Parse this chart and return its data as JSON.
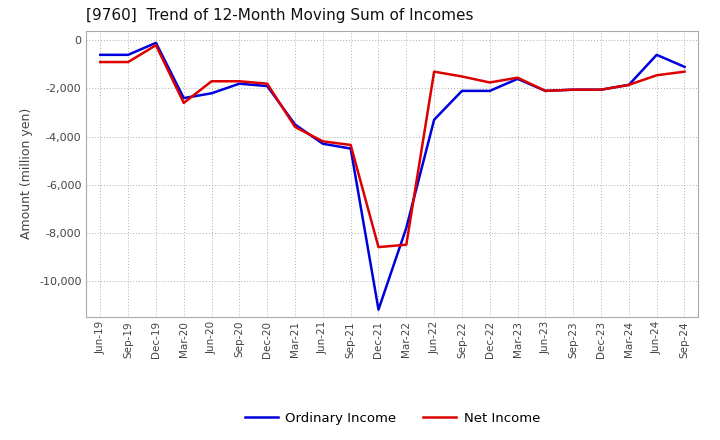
{
  "title": "[9760]  Trend of 12-Month Moving Sum of Incomes",
  "ylabel": "Amount (million yen)",
  "background_color": "#ffffff",
  "grid_color": "#999999",
  "plot_bg_color": "#ffffff",
  "labels": [
    "Jun-19",
    "Sep-19",
    "Dec-19",
    "Mar-20",
    "Jun-20",
    "Sep-20",
    "Dec-20",
    "Mar-21",
    "Jun-21",
    "Sep-21",
    "Dec-21",
    "Mar-22",
    "Jun-22",
    "Sep-22",
    "Dec-22",
    "Mar-23",
    "Jun-23",
    "Sep-23",
    "Dec-23",
    "Mar-24",
    "Jun-24",
    "Sep-24"
  ],
  "ordinary_income": [
    -600,
    -600,
    -100,
    -2400,
    -2200,
    -1800,
    -1900,
    -3500,
    -4300,
    -4500,
    -11200,
    -7800,
    -3300,
    -2100,
    -2100,
    -1600,
    -2100,
    -2050,
    -2050,
    -1850,
    -600,
    -1100
  ],
  "net_income": [
    -900,
    -900,
    -200,
    -2600,
    -1700,
    -1700,
    -1800,
    -3600,
    -4200,
    -4350,
    -8600,
    -8500,
    -1300,
    -1500,
    -1750,
    -1550,
    -2100,
    -2050,
    -2050,
    -1850,
    -1450,
    -1300
  ],
  "ordinary_color": "#0000dd",
  "net_color": "#dd0000",
  "ylim": [
    -11500,
    400
  ],
  "yticks": [
    0,
    -2000,
    -4000,
    -6000,
    -8000,
    -10000
  ],
  "legend_labels": [
    "Ordinary Income",
    "Net Income"
  ],
  "line_width": 1.8
}
